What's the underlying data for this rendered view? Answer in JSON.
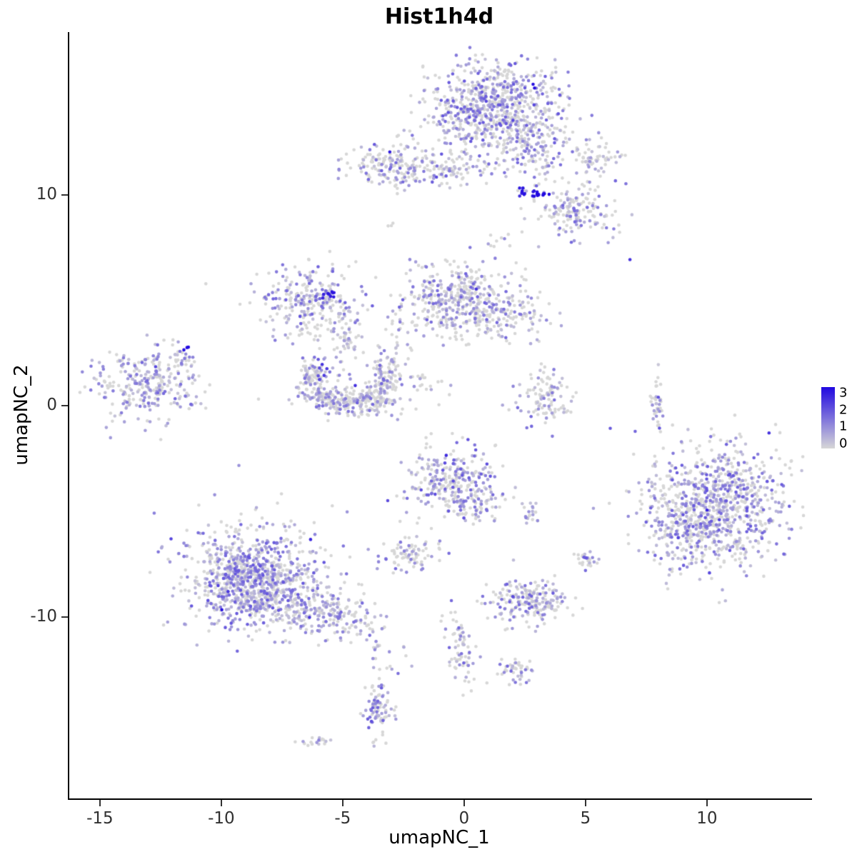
{
  "title": "Hist1h4d",
  "axes": {
    "x_label": "umapNC_1",
    "y_label": "umapNC_2"
  },
  "colorbar": {
    "tick_labels": [
      "3",
      "2",
      "1",
      "0"
    ],
    "high_color": "#2008e0",
    "low_color": "#d7d7d7"
  },
  "chart_data": {
    "type": "scatter",
    "title": "Hist1h4d",
    "xlabel": "umapNC_1",
    "ylabel": "umapNC_2",
    "xlim": [
      -16.32,
      14.27
    ],
    "ylim": [
      -18.6,
      17.7
    ],
    "x_ticks": [
      -15,
      -10,
      -5,
      0,
      5,
      10
    ],
    "y_ticks": [
      -10,
      0,
      10
    ],
    "grid": false,
    "legend": {
      "position": "right",
      "breaks": [
        3,
        2,
        1,
        0
      ],
      "domain": [
        0,
        3
      ]
    },
    "color_scale": {
      "low": "#d7d7d7",
      "high": "#2008e0",
      "domain": [
        0,
        3
      ]
    },
    "point_radius": 2.3,
    "seed": 42,
    "clusters": [
      {
        "name": "top-main",
        "cx": 1.1,
        "cy": 14.3,
        "sx": 1.3,
        "sy": 1.05,
        "n": 650,
        "p0": 0.5,
        "lvl": 1.4
      },
      {
        "name": "top-main-fringe",
        "cx": 1.3,
        "cy": 13.2,
        "sx": 1.7,
        "sy": 0.7,
        "n": 120,
        "p0": 0.55,
        "lvl": 1.2
      },
      {
        "name": "top-arm",
        "cx": 3.1,
        "cy": 11.9,
        "sx": 0.75,
        "sy": 0.95,
        "n": 130,
        "p0": 0.55,
        "lvl": 1.3,
        "rot": -35
      },
      {
        "name": "top-left",
        "cx": -2.8,
        "cy": 11.4,
        "sx": 1.15,
        "sy": 0.5,
        "n": 190,
        "p0": 0.5,
        "lvl": 1.3
      },
      {
        "name": "top-left-tail",
        "cx": -1.1,
        "cy": 11.2,
        "sx": 0.8,
        "sy": 0.3,
        "n": 45,
        "p0": 0.6,
        "lvl": 1.0
      },
      {
        "name": "top-right-small",
        "cx": 5.3,
        "cy": 11.6,
        "sx": 0.55,
        "sy": 0.4,
        "n": 55,
        "p0": 0.65,
        "lvl": 1.0
      },
      {
        "name": "right-mid",
        "cx": 4.5,
        "cy": 9.2,
        "sx": 0.85,
        "sy": 0.6,
        "n": 160,
        "p0": 0.55,
        "lvl": 1.2
      },
      {
        "name": "hotspot-a",
        "cx": 2.35,
        "cy": 10.05,
        "sx": 0.12,
        "sy": 0.1,
        "n": 8,
        "fixed": 2.7,
        "spread": 0.5
      },
      {
        "name": "hotspot-b",
        "cx": 3.05,
        "cy": 10.0,
        "sx": 0.18,
        "sy": 0.1,
        "n": 14,
        "fixed": 2.9,
        "spread": 0.3
      },
      {
        "name": "between-top",
        "cx": 0.3,
        "cy": 11.6,
        "sx": 1.1,
        "sy": 0.5,
        "n": 30,
        "p0": 0.6,
        "lvl": 1.0
      },
      {
        "name": "center-mid",
        "cx": -0.2,
        "cy": 5.0,
        "sx": 1.15,
        "sy": 0.85,
        "n": 420,
        "p0": 0.55,
        "lvl": 1.3
      },
      {
        "name": "center-mid-arm",
        "cx": 1.7,
        "cy": 4.3,
        "sx": 0.9,
        "sy": 0.5,
        "n": 110,
        "p0": 0.55,
        "lvl": 1.2
      },
      {
        "name": "left-mid",
        "cx": -6.4,
        "cy": 4.9,
        "sx": 0.95,
        "sy": 0.85,
        "n": 270,
        "p0": 0.5,
        "lvl": 1.3
      },
      {
        "name": "left-mid-neck",
        "cx": -4.9,
        "cy": 3.4,
        "sx": 0.35,
        "sy": 0.9,
        "n": 60,
        "p0": 0.55,
        "lvl": 1.1
      },
      {
        "name": "hotspot-c",
        "cx": -5.55,
        "cy": 5.25,
        "sx": 0.14,
        "sy": 0.1,
        "n": 9,
        "fixed": 2.6,
        "spread": 0.5
      },
      {
        "name": "crescent",
        "arc": {
          "rx": 1.55,
          "ry": 1.25,
          "a0": 150,
          "a1": 390
        },
        "cx": -4.8,
        "cy": 1.35,
        "jit": 0.3,
        "n": 330,
        "p0": 0.55,
        "lvl": 1.2
      },
      {
        "name": "crescent-fill",
        "cx": -4.6,
        "cy": 0.3,
        "sx": 1.3,
        "sy": 0.45,
        "n": 140,
        "p0": 0.6,
        "lvl": 1.0
      },
      {
        "name": "hotspot-d",
        "cx": -5.9,
        "cy": 1.8,
        "sx": 0.15,
        "sy": 0.35,
        "n": 7,
        "fixed": 2.1,
        "spread": 0.6
      },
      {
        "name": "far-left",
        "cx": -13.2,
        "cy": 1.0,
        "sx": 1.0,
        "sy": 0.8,
        "n": 280,
        "p0": 0.5,
        "lvl": 1.2
      },
      {
        "name": "far-left-arm",
        "cx": -11.9,
        "cy": 2.2,
        "sx": 0.35,
        "sy": 0.35,
        "n": 25,
        "p0": 0.5,
        "lvl": 1.2
      },
      {
        "name": "hotspot-e",
        "cx": -11.5,
        "cy": 2.7,
        "sx": 0.08,
        "sy": 0.06,
        "n": 3,
        "fixed": 2.9,
        "spread": 0.2
      },
      {
        "name": "small-v",
        "cx": 3.3,
        "cy": 0.3,
        "sx": 0.55,
        "sy": 0.75,
        "n": 110,
        "p0": 0.55,
        "lvl": 1.2
      },
      {
        "name": "thin-vertical",
        "cx": 7.9,
        "cy": 0.1,
        "sx": 0.12,
        "sy": 0.75,
        "n": 40,
        "p0": 0.7,
        "lvl": 0.9
      },
      {
        "name": "right-big",
        "cx": 10.4,
        "cy": -4.6,
        "sx": 1.45,
        "sy": 1.35,
        "n": 850,
        "p0": 0.5,
        "lvl": 1.4
      },
      {
        "name": "right-big-fringe",
        "cx": 9.3,
        "cy": -6.3,
        "sx": 0.9,
        "sy": 0.8,
        "n": 150,
        "p0": 0.5,
        "lvl": 1.3
      },
      {
        "name": "center-low",
        "cx": -0.6,
        "cy": -3.6,
        "sx": 0.95,
        "sy": 0.85,
        "n": 290,
        "p0": 0.5,
        "lvl": 1.5
      },
      {
        "name": "center-low-tail",
        "cx": 0.6,
        "cy": -4.8,
        "sx": 0.5,
        "sy": 0.5,
        "n": 50,
        "p0": 0.55,
        "lvl": 1.2
      },
      {
        "name": "small-below",
        "cx": -2.3,
        "cy": -7.0,
        "sx": 0.6,
        "sy": 0.4,
        "n": 80,
        "p0": 0.55,
        "lvl": 1.2
      },
      {
        "name": "tiny-a",
        "cx": 2.7,
        "cy": -5.1,
        "sx": 0.2,
        "sy": 0.25,
        "n": 20,
        "p0": 0.5,
        "lvl": 1.3
      },
      {
        "name": "tiny-b",
        "cx": 4.9,
        "cy": -7.3,
        "sx": 0.3,
        "sy": 0.2,
        "n": 28,
        "p0": 0.5,
        "lvl": 1.5
      },
      {
        "name": "bottom-left-core",
        "cx": -8.8,
        "cy": -8.4,
        "sx": 1.15,
        "sy": 1.05,
        "n": 750,
        "p0": 0.45,
        "lvl": 1.4
      },
      {
        "name": "bottom-left-halo",
        "cx": -8.4,
        "cy": -7.6,
        "sx": 1.8,
        "sy": 1.5,
        "n": 260,
        "p0": 0.5,
        "lvl": 1.2
      },
      {
        "name": "bottom-left-arm",
        "cx": -5.9,
        "cy": -9.8,
        "sx": 1.15,
        "sy": 0.55,
        "n": 230,
        "p0": 0.5,
        "lvl": 1.2,
        "rot": -18
      },
      {
        "name": "mid-low",
        "cx": 2.5,
        "cy": -9.3,
        "sx": 0.75,
        "sy": 0.5,
        "n": 210,
        "p0": 0.5,
        "lvl": 1.3
      },
      {
        "name": "string-down",
        "cx": -0.2,
        "cy": -11.4,
        "sx": 0.3,
        "sy": 0.95,
        "n": 70,
        "p0": 0.5,
        "lvl": 1.3,
        "rot": 12
      },
      {
        "name": "small-c",
        "cx": 2.1,
        "cy": -12.4,
        "sx": 0.35,
        "sy": 0.3,
        "n": 45,
        "p0": 0.5,
        "lvl": 1.4
      },
      {
        "name": "bottom-strip",
        "cx": -3.6,
        "cy": -14.5,
        "sx": 0.3,
        "sy": 0.85,
        "n": 90,
        "p0": 0.5,
        "lvl": 1.3
      },
      {
        "name": "tiny-bottom",
        "cx": -6.1,
        "cy": -15.9,
        "sx": 0.3,
        "sy": 0.12,
        "n": 18,
        "p0": 0.6,
        "lvl": 1.0
      },
      {
        "name": "dot-blue",
        "cx": 6.8,
        "cy": 6.9,
        "sx": 0.02,
        "sy": 0.02,
        "n": 1,
        "fixed": 2.4,
        "spread": 0
      },
      {
        "name": "dot-grey",
        "cx": -10.7,
        "cy": 5.8,
        "sx": 0.02,
        "sy": 0.02,
        "n": 1,
        "p0": 1,
        "lvl": 0
      },
      {
        "name": "pair-grey",
        "cx": -2.9,
        "cy": 8.5,
        "sx": 0.12,
        "sy": 0.1,
        "n": 3,
        "p0": 1,
        "lvl": 0
      },
      {
        "name": "bridge-a",
        "cx": -2.7,
        "cy": 2.6,
        "sx": 0.5,
        "sy": 0.9,
        "n": 25,
        "p0": 0.6,
        "lvl": 1.0
      },
      {
        "name": "bridge-b",
        "cx": -1.6,
        "cy": 0.9,
        "sx": 0.5,
        "sy": 0.4,
        "n": 18,
        "p0": 0.65,
        "lvl": 0.9
      },
      {
        "name": "sparse-below-top",
        "cx": 1.4,
        "cy": 7.6,
        "sx": 0.5,
        "sy": 0.7,
        "n": 10,
        "p0": 0.6,
        "lvl": 1.0
      },
      {
        "name": "sparse-misc",
        "cx": -3.3,
        "cy": -11.8,
        "sx": 0.4,
        "sy": 0.5,
        "n": 12,
        "p0": 0.6,
        "lvl": 1.0
      }
    ]
  }
}
